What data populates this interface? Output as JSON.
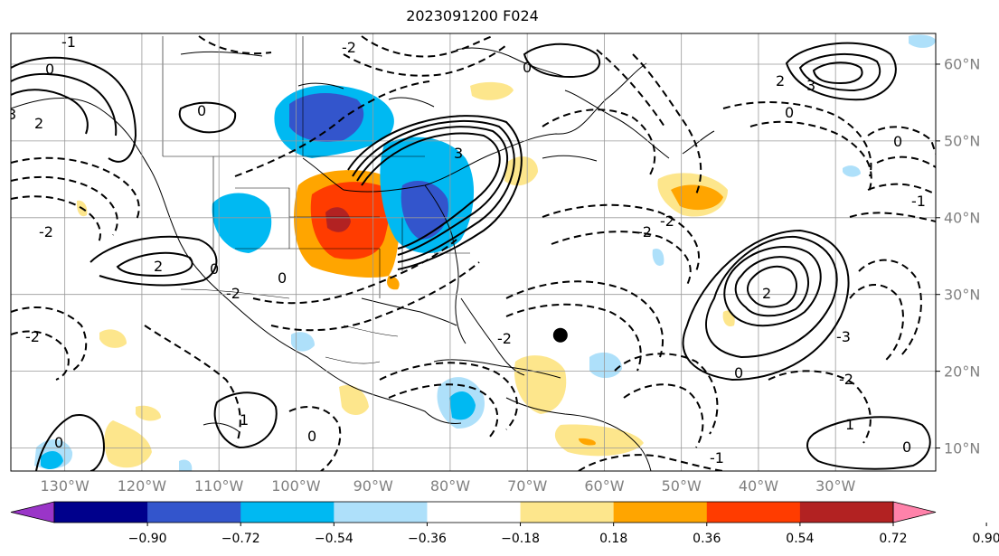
{
  "title": "2023091200 F024",
  "lon_labels": [
    "130°W",
    "120°W",
    "110°W",
    "100°W",
    "90°W",
    "80°W",
    "70°W",
    "60°W",
    "50°W",
    "40°W",
    "30°W"
  ],
  "lat_labels": [
    "60°N",
    "50°N",
    "40°N",
    "30°N",
    "20°N",
    "10°N"
  ],
  "colorbar": {
    "levels": [
      "−0.90",
      "−0.72",
      "−0.54",
      "−0.36",
      "−0.18",
      "0.18",
      "0.36",
      "0.54",
      "0.72",
      "0.90"
    ],
    "colors": [
      "#9a35c8",
      "#00008c",
      "#3355cc",
      "#00b9f2",
      "#aee0fa",
      "#ffffff",
      "#fde68c",
      "#ffa500",
      "#ff3c00",
      "#b22222",
      "#ff82aa"
    ]
  },
  "map": {
    "extent_lon": [
      -137,
      -17
    ],
    "extent_lat": [
      7,
      64
    ],
    "grid_lon": [
      -130,
      -120,
      -110,
      -100,
      -90,
      -80,
      -70,
      -60,
      -50,
      -40,
      -30
    ],
    "grid_lat": [
      60,
      50,
      40,
      30,
      20,
      10
    ],
    "marker": {
      "lon": -65.7,
      "lat": 24.7,
      "color": "#000000"
    }
  },
  "contour_labels": [
    "0",
    "-2",
    "2",
    "3",
    "-1",
    "1",
    "-3"
  ]
}
